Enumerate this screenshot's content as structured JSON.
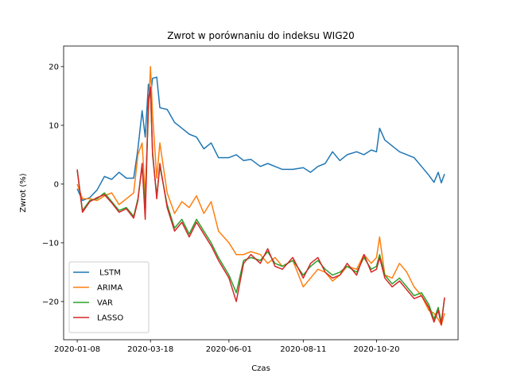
{
  "chart_data": {
    "type": "line",
    "title": "Zwrot w porównaniu do indeksu WIG20",
    "xlabel": "Czas",
    "ylabel": "Zwrot (%)",
    "ylim": [
      -26.5,
      23.5
    ],
    "yticks": [
      -20,
      -10,
      0,
      10,
      20
    ],
    "xlim": [
      "2019-12-26",
      "2021-01-06"
    ],
    "xticks": [
      "2020-01-08",
      "2020-03-18",
      "2020-06-01",
      "2020-08-11",
      "2020-10-20"
    ],
    "grid": false,
    "legend_position": "lower-left",
    "series": [
      {
        "name": " LSTM",
        "color": "#1f77b4",
        "points": [
          [
            "2020-01-08",
            -0.8
          ],
          [
            "2020-01-13",
            -2.8
          ],
          [
            "2020-01-20",
            -2.3
          ],
          [
            "2020-01-27",
            -1.0
          ],
          [
            "2020-02-03",
            1.3
          ],
          [
            "2020-02-10",
            0.8
          ],
          [
            "2020-02-17",
            2.0
          ],
          [
            "2020-02-24",
            1.0
          ],
          [
            "2020-03-02",
            1.0
          ],
          [
            "2020-03-06",
            6.0
          ],
          [
            "2020-03-10",
            12.5
          ],
          [
            "2020-03-13",
            8.0
          ],
          [
            "2020-03-16",
            17.0
          ],
          [
            "2020-03-18",
            15.0
          ],
          [
            "2020-03-20",
            18.0
          ],
          [
            "2020-03-24",
            18.2
          ],
          [
            "2020-03-27",
            13.0
          ],
          [
            "2020-04-03",
            12.7
          ],
          [
            "2020-04-10",
            10.5
          ],
          [
            "2020-04-17",
            9.5
          ],
          [
            "2020-04-24",
            8.5
          ],
          [
            "2020-05-01",
            8.0
          ],
          [
            "2020-05-08",
            6.0
          ],
          [
            "2020-05-15",
            7.0
          ],
          [
            "2020-05-22",
            4.5
          ],
          [
            "2020-06-01",
            4.5
          ],
          [
            "2020-06-08",
            5.0
          ],
          [
            "2020-06-15",
            4.0
          ],
          [
            "2020-06-22",
            4.2
          ],
          [
            "2020-07-01",
            3.0
          ],
          [
            "2020-07-08",
            3.5
          ],
          [
            "2020-07-15",
            3.0
          ],
          [
            "2020-07-22",
            2.5
          ],
          [
            "2020-08-01",
            2.5
          ],
          [
            "2020-08-11",
            2.8
          ],
          [
            "2020-08-18",
            2.0
          ],
          [
            "2020-08-25",
            3.0
          ],
          [
            "2020-09-01",
            3.5
          ],
          [
            "2020-09-08",
            5.5
          ],
          [
            "2020-09-15",
            4.0
          ],
          [
            "2020-09-22",
            5.0
          ],
          [
            "2020-10-01",
            5.5
          ],
          [
            "2020-10-08",
            5.0
          ],
          [
            "2020-10-15",
            5.8
          ],
          [
            "2020-10-20",
            5.5
          ],
          [
            "2020-10-23",
            9.5
          ],
          [
            "2020-10-28",
            7.5
          ],
          [
            "2020-11-04",
            6.5
          ],
          [
            "2020-11-11",
            5.5
          ],
          [
            "2020-11-18",
            5.0
          ],
          [
            "2020-11-25",
            4.5
          ],
          [
            "2020-12-02",
            3.0
          ],
          [
            "2020-12-09",
            1.5
          ],
          [
            "2020-12-14",
            0.3
          ],
          [
            "2020-12-18",
            2.0
          ],
          [
            "2020-12-21",
            0.2
          ],
          [
            "2020-12-24",
            1.7
          ]
        ]
      },
      {
        "name": "ARIMA",
        "color": "#ff7f0e",
        "points": [
          [
            "2020-01-08",
            0.0
          ],
          [
            "2020-01-13",
            -2.5
          ],
          [
            "2020-01-20",
            -2.5
          ],
          [
            "2020-01-27",
            -2.8
          ],
          [
            "2020-02-03",
            -2.0
          ],
          [
            "2020-02-10",
            -1.5
          ],
          [
            "2020-02-17",
            -3.5
          ],
          [
            "2020-02-24",
            -2.5
          ],
          [
            "2020-03-02",
            -1.5
          ],
          [
            "2020-03-06",
            5.0
          ],
          [
            "2020-03-10",
            7.0
          ],
          [
            "2020-03-13",
            -2.0
          ],
          [
            "2020-03-16",
            12.0
          ],
          [
            "2020-03-18",
            20.0
          ],
          [
            "2020-03-20",
            12.0
          ],
          [
            "2020-03-24",
            1.0
          ],
          [
            "2020-03-27",
            7.0
          ],
          [
            "2020-04-03",
            -1.5
          ],
          [
            "2020-04-10",
            -5.0
          ],
          [
            "2020-04-17",
            -3.0
          ],
          [
            "2020-04-24",
            -4.0
          ],
          [
            "2020-05-01",
            -2.0
          ],
          [
            "2020-05-08",
            -5.0
          ],
          [
            "2020-05-15",
            -3.0
          ],
          [
            "2020-05-22",
            -8.0
          ],
          [
            "2020-06-01",
            -10.0
          ],
          [
            "2020-06-08",
            -12.0
          ],
          [
            "2020-06-15",
            -12.0
          ],
          [
            "2020-06-22",
            -11.5
          ],
          [
            "2020-07-01",
            -12.0
          ],
          [
            "2020-07-08",
            -13.5
          ],
          [
            "2020-07-15",
            -12.5
          ],
          [
            "2020-07-22",
            -14.0
          ],
          [
            "2020-08-01",
            -13.0
          ],
          [
            "2020-08-11",
            -17.5
          ],
          [
            "2020-08-18",
            -16.0
          ],
          [
            "2020-08-25",
            -14.5
          ],
          [
            "2020-09-01",
            -15.0
          ],
          [
            "2020-09-08",
            -16.5
          ],
          [
            "2020-09-15",
            -15.5
          ],
          [
            "2020-09-22",
            -14.0
          ],
          [
            "2020-10-01",
            -14.5
          ],
          [
            "2020-10-08",
            -12.0
          ],
          [
            "2020-10-15",
            -13.5
          ],
          [
            "2020-10-20",
            -12.5
          ],
          [
            "2020-10-23",
            -9.0
          ],
          [
            "2020-10-28",
            -15.5
          ],
          [
            "2020-11-04",
            -16.0
          ],
          [
            "2020-11-11",
            -13.5
          ],
          [
            "2020-11-18",
            -15.0
          ],
          [
            "2020-11-25",
            -17.5
          ],
          [
            "2020-12-02",
            -19.0
          ],
          [
            "2020-12-09",
            -21.5
          ],
          [
            "2020-12-14",
            -22.0
          ],
          [
            "2020-12-18",
            -23.0
          ],
          [
            "2020-12-21",
            -24.0
          ],
          [
            "2020-12-24",
            -22.0
          ]
        ]
      },
      {
        "name": "VAR",
        "color": "#2ca02c",
        "points": [
          [
            "2020-01-08",
            2.3
          ],
          [
            "2020-01-13",
            -4.5
          ],
          [
            "2020-01-20",
            -2.8
          ],
          [
            "2020-01-27",
            -2.5
          ],
          [
            "2020-02-03",
            -1.5
          ],
          [
            "2020-02-10",
            -3.0
          ],
          [
            "2020-02-17",
            -4.5
          ],
          [
            "2020-02-24",
            -4.0
          ],
          [
            "2020-03-02",
            -5.5
          ],
          [
            "2020-03-06",
            -2.5
          ],
          [
            "2020-03-10",
            3.0
          ],
          [
            "2020-03-13",
            -4.0
          ],
          [
            "2020-03-16",
            14.0
          ],
          [
            "2020-03-18",
            16.0
          ],
          [
            "2020-03-20",
            5.0
          ],
          [
            "2020-03-24",
            -2.0
          ],
          [
            "2020-03-27",
            3.0
          ],
          [
            "2020-04-03",
            -3.5
          ],
          [
            "2020-04-10",
            -7.5
          ],
          [
            "2020-04-17",
            -6.0
          ],
          [
            "2020-04-24",
            -8.5
          ],
          [
            "2020-05-01",
            -6.0
          ],
          [
            "2020-05-08",
            -8.0
          ],
          [
            "2020-05-15",
            -10.0
          ],
          [
            "2020-05-22",
            -12.5
          ],
          [
            "2020-06-01",
            -15.5
          ],
          [
            "2020-06-08",
            -18.5
          ],
          [
            "2020-06-15",
            -13.0
          ],
          [
            "2020-06-22",
            -12.5
          ],
          [
            "2020-07-01",
            -13.0
          ],
          [
            "2020-07-08",
            -11.5
          ],
          [
            "2020-07-15",
            -13.5
          ],
          [
            "2020-07-22",
            -14.0
          ],
          [
            "2020-08-01",
            -13.0
          ],
          [
            "2020-08-11",
            -15.5
          ],
          [
            "2020-08-18",
            -14.0
          ],
          [
            "2020-08-25",
            -13.0
          ],
          [
            "2020-09-01",
            -14.5
          ],
          [
            "2020-09-08",
            -15.5
          ],
          [
            "2020-09-15",
            -15.0
          ],
          [
            "2020-09-22",
            -14.0
          ],
          [
            "2020-10-01",
            -15.0
          ],
          [
            "2020-10-08",
            -12.5
          ],
          [
            "2020-10-15",
            -14.5
          ],
          [
            "2020-10-20",
            -14.0
          ],
          [
            "2020-10-23",
            -12.0
          ],
          [
            "2020-10-28",
            -15.5
          ],
          [
            "2020-11-04",
            -17.0
          ],
          [
            "2020-11-11",
            -16.0
          ],
          [
            "2020-11-18",
            -17.5
          ],
          [
            "2020-11-25",
            -19.0
          ],
          [
            "2020-12-02",
            -18.5
          ],
          [
            "2020-12-09",
            -20.5
          ],
          [
            "2020-12-14",
            -23.0
          ],
          [
            "2020-12-18",
            -21.0
          ],
          [
            "2020-12-21",
            -23.5
          ],
          [
            "2020-12-24",
            -19.5
          ]
        ]
      },
      {
        "name": "LASSO",
        "color": "#d62728",
        "points": [
          [
            "2020-01-08",
            2.5
          ],
          [
            "2020-01-13",
            -4.8
          ],
          [
            "2020-01-20",
            -3.0
          ],
          [
            "2020-01-27",
            -2.3
          ],
          [
            "2020-02-03",
            -1.8
          ],
          [
            "2020-02-10",
            -3.2
          ],
          [
            "2020-02-17",
            -4.8
          ],
          [
            "2020-02-24",
            -4.2
          ],
          [
            "2020-03-02",
            -5.8
          ],
          [
            "2020-03-06",
            -2.8
          ],
          [
            "2020-03-10",
            3.5
          ],
          [
            "2020-03-13",
            -6.0
          ],
          [
            "2020-03-16",
            14.5
          ],
          [
            "2020-03-18",
            16.5
          ],
          [
            "2020-03-20",
            5.5
          ],
          [
            "2020-03-24",
            -2.5
          ],
          [
            "2020-03-27",
            3.5
          ],
          [
            "2020-04-03",
            -4.0
          ],
          [
            "2020-04-10",
            -8.0
          ],
          [
            "2020-04-17",
            -6.5
          ],
          [
            "2020-04-24",
            -9.0
          ],
          [
            "2020-05-01",
            -6.5
          ],
          [
            "2020-05-08",
            -8.5
          ],
          [
            "2020-05-15",
            -10.5
          ],
          [
            "2020-05-22",
            -13.0
          ],
          [
            "2020-06-01",
            -16.0
          ],
          [
            "2020-06-08",
            -20.0
          ],
          [
            "2020-06-15",
            -13.5
          ],
          [
            "2020-06-22",
            -12.0
          ],
          [
            "2020-07-01",
            -13.5
          ],
          [
            "2020-07-08",
            -11.0
          ],
          [
            "2020-07-15",
            -14.0
          ],
          [
            "2020-07-22",
            -14.5
          ],
          [
            "2020-08-01",
            -12.5
          ],
          [
            "2020-08-11",
            -16.0
          ],
          [
            "2020-08-18",
            -13.5
          ],
          [
            "2020-08-25",
            -12.5
          ],
          [
            "2020-09-01",
            -15.0
          ],
          [
            "2020-09-08",
            -16.0
          ],
          [
            "2020-09-15",
            -15.5
          ],
          [
            "2020-09-22",
            -13.5
          ],
          [
            "2020-10-01",
            -15.5
          ],
          [
            "2020-10-08",
            -12.0
          ],
          [
            "2020-10-15",
            -15.0
          ],
          [
            "2020-10-20",
            -14.5
          ],
          [
            "2020-10-23",
            -12.5
          ],
          [
            "2020-10-28",
            -16.0
          ],
          [
            "2020-11-04",
            -17.5
          ],
          [
            "2020-11-11",
            -16.5
          ],
          [
            "2020-11-18",
            -18.0
          ],
          [
            "2020-11-25",
            -19.5
          ],
          [
            "2020-12-02",
            -19.0
          ],
          [
            "2020-12-09",
            -21.0
          ],
          [
            "2020-12-14",
            -23.5
          ],
          [
            "2020-12-18",
            -21.5
          ],
          [
            "2020-12-21",
            -24.0
          ],
          [
            "2020-12-24",
            -19.3
          ]
        ]
      }
    ]
  }
}
